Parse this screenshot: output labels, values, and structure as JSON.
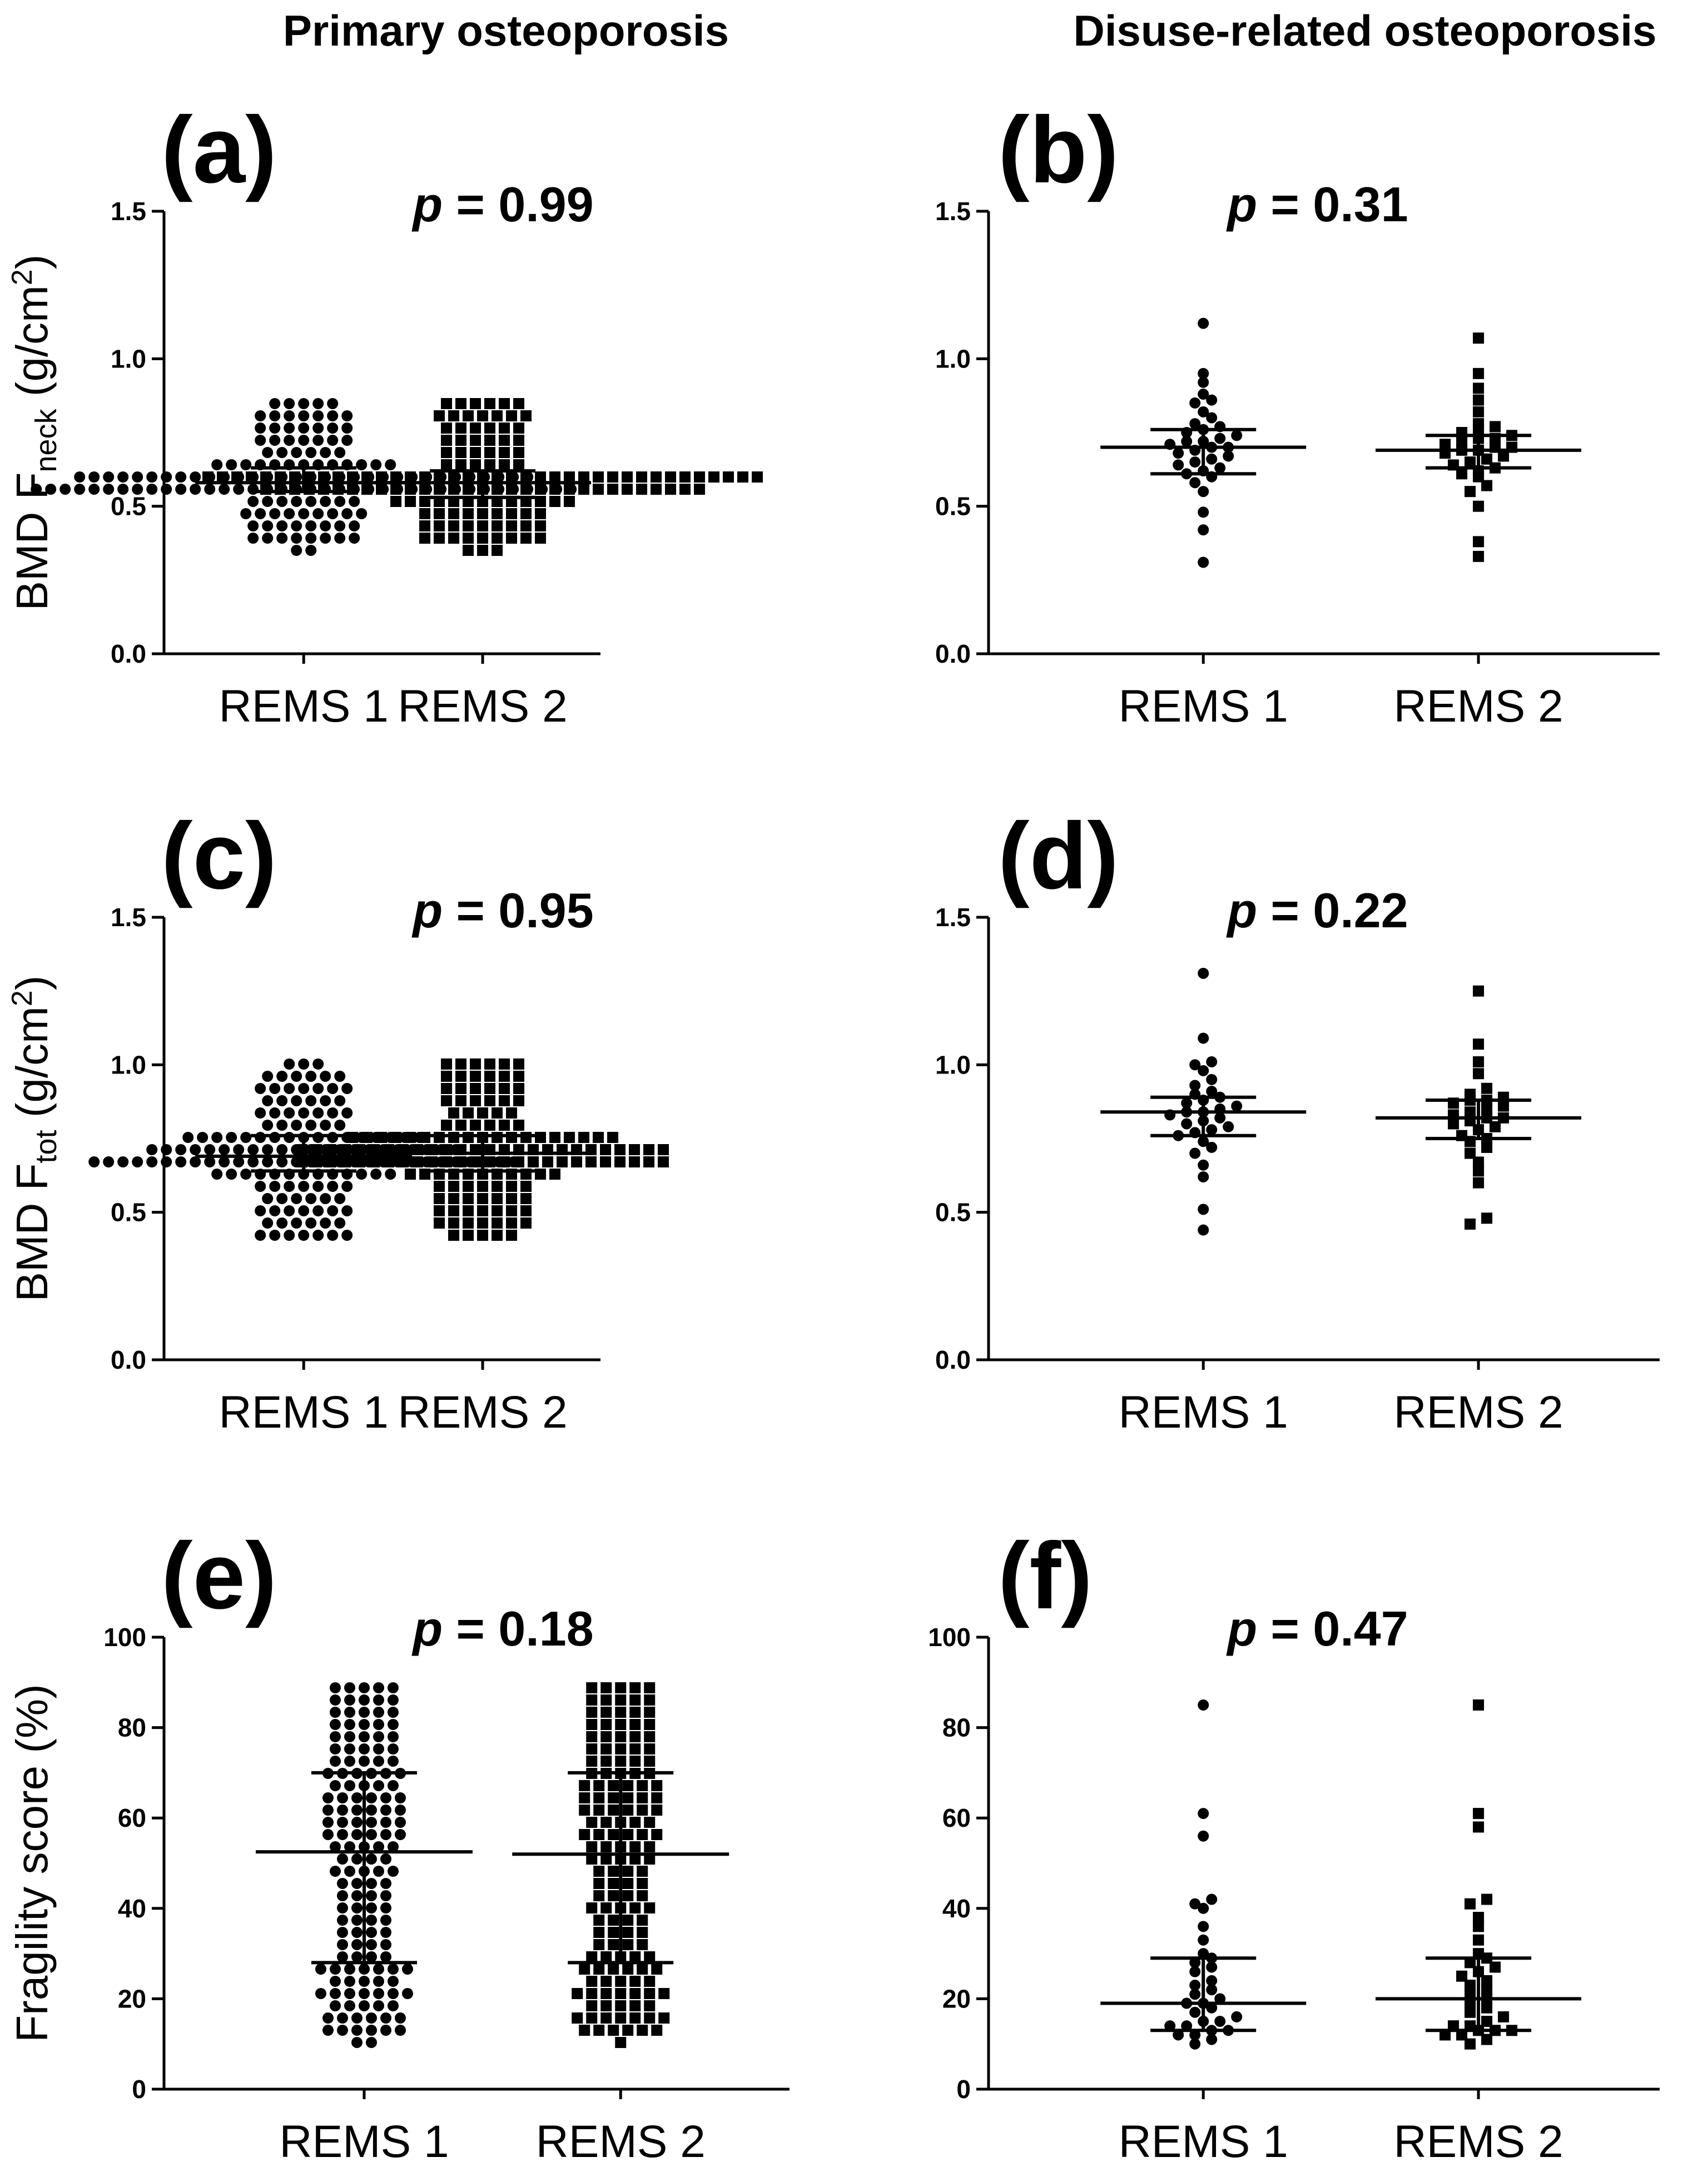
{
  "column_titles": [
    "Primary osteoporosis",
    "Disuse-related osteoporosis"
  ],
  "y_labels": {
    "neck": {
      "main": "BMD F",
      "sub": "neck",
      "unit": " (g/cm",
      "sup": "2",
      "close": ")"
    },
    "tot": {
      "main": "BMD F",
      "sub": "tot",
      "unit": " (g/cm",
      "sup": "2",
      "close": ")"
    },
    "frag": {
      "main": "Fragility score (%)"
    }
  },
  "chart_data": [
    {
      "id": "a",
      "type": "scatter",
      "panel_label": "(a)",
      "p_label": "p",
      "p_value": "= 0.99",
      "y_axis": "neck",
      "categories": [
        "REMS 1",
        "REMS 2"
      ],
      "ylim": [
        0,
        1.5
      ],
      "yticks": [
        "0.0",
        "0.5",
        "1.0",
        "1.5"
      ],
      "groups": [
        {
          "name": "REMS 1",
          "marker": "circle",
          "n": 150,
          "median": 0.58,
          "q1": 0.55,
          "q3": 0.63,
          "min": 0.36,
          "max": 0.86
        },
        {
          "name": "REMS 2",
          "marker": "square",
          "n": 150,
          "median": 0.58,
          "q1": 0.53,
          "q3": 0.62,
          "min": 0.36,
          "max": 0.87
        }
      ]
    },
    {
      "id": "b",
      "type": "scatter",
      "panel_label": "(b)",
      "p_label": "p",
      "p_value": "= 0.31",
      "y_axis": null,
      "categories": [
        "REMS 1",
        "REMS 2"
      ],
      "ylim": [
        0,
        1.5
      ],
      "yticks": [
        "0.0",
        "0.5",
        "1.0",
        "1.5"
      ],
      "groups": [
        {
          "name": "REMS 1",
          "marker": "circle",
          "median": 0.7,
          "q1": 0.61,
          "q3": 0.76,
          "values": [
            0.31,
            0.42,
            0.48,
            0.55,
            0.58,
            0.6,
            0.61,
            0.62,
            0.63,
            0.64,
            0.65,
            0.66,
            0.67,
            0.68,
            0.69,
            0.7,
            0.7,
            0.71,
            0.72,
            0.72,
            0.73,
            0.74,
            0.75,
            0.76,
            0.77,
            0.78,
            0.8,
            0.82,
            0.85,
            0.86,
            0.88,
            0.92,
            0.95,
            1.12
          ]
        },
        {
          "name": "REMS 2",
          "marker": "square",
          "median": 0.69,
          "q1": 0.63,
          "q3": 0.74,
          "values": [
            0.33,
            0.38,
            0.5,
            0.55,
            0.57,
            0.6,
            0.61,
            0.62,
            0.63,
            0.64,
            0.65,
            0.66,
            0.67,
            0.68,
            0.69,
            0.69,
            0.7,
            0.7,
            0.71,
            0.72,
            0.73,
            0.73,
            0.74,
            0.75,
            0.76,
            0.77,
            0.78,
            0.82,
            0.86,
            0.9,
            0.95,
            1.07
          ]
        }
      ]
    },
    {
      "id": "c",
      "type": "scatter",
      "panel_label": "(c)",
      "p_label": "p",
      "p_value": "= 0.95",
      "y_axis": "tot",
      "categories": [
        "REMS 1",
        "REMS 2"
      ],
      "ylim": [
        0,
        1.5
      ],
      "yticks": [
        "0.0",
        "0.5",
        "1.0",
        "1.5"
      ],
      "groups": [
        {
          "name": "REMS 1",
          "marker": "circle",
          "n": 150,
          "median": 0.69,
          "q1": 0.64,
          "q3": 0.76,
          "min": 0.4,
          "max": 1.0
        },
        {
          "name": "REMS 2",
          "marker": "square",
          "n": 150,
          "median": 0.7,
          "q1": 0.64,
          "q3": 0.76,
          "min": 0.41,
          "max": 1.02
        }
      ]
    },
    {
      "id": "d",
      "type": "scatter",
      "panel_label": "(d)",
      "p_label": "p",
      "p_value": "= 0.22",
      "y_axis": null,
      "categories": [
        "REMS 1",
        "REMS 2"
      ],
      "ylim": [
        0,
        1.5
      ],
      "yticks": [
        "0.0",
        "0.5",
        "1.0",
        "1.5"
      ],
      "groups": [
        {
          "name": "REMS 1",
          "marker": "circle",
          "median": 0.84,
          "q1": 0.76,
          "q3": 0.89,
          "values": [
            0.44,
            0.51,
            0.62,
            0.66,
            0.7,
            0.72,
            0.74,
            0.76,
            0.77,
            0.78,
            0.79,
            0.8,
            0.81,
            0.82,
            0.83,
            0.84,
            0.84,
            0.85,
            0.86,
            0.87,
            0.88,
            0.89,
            0.9,
            0.91,
            0.93,
            0.95,
            0.98,
            1.0,
            1.01,
            1.09,
            1.31
          ]
        },
        {
          "name": "REMS 2",
          "marker": "square",
          "median": 0.82,
          "q1": 0.75,
          "q3": 0.88,
          "values": [
            0.46,
            0.48,
            0.6,
            0.64,
            0.67,
            0.7,
            0.72,
            0.74,
            0.75,
            0.76,
            0.78,
            0.79,
            0.8,
            0.81,
            0.82,
            0.82,
            0.83,
            0.84,
            0.85,
            0.86,
            0.87,
            0.88,
            0.88,
            0.89,
            0.9,
            0.92,
            0.97,
            1.01,
            1.07,
            1.25
          ]
        }
      ]
    },
    {
      "id": "e",
      "type": "scatter",
      "panel_label": "(e)",
      "p_label": "p",
      "p_value": "= 0.18",
      "y_axis": "frag",
      "categories": [
        "REMS 1",
        "REMS 2"
      ],
      "ylim": [
        0,
        100
      ],
      "yticks": [
        "0",
        "20",
        "40",
        "60",
        "80",
        "100"
      ],
      "groups": [
        {
          "name": "REMS 1",
          "marker": "circle",
          "n": 150,
          "median": 52.5,
          "q1": 28,
          "q3": 70,
          "min": 11,
          "max": 90
        },
        {
          "name": "REMS 2",
          "marker": "square",
          "n": 150,
          "median": 52,
          "q1": 28,
          "q3": 70,
          "min": 11,
          "max": 90
        }
      ]
    },
    {
      "id": "f",
      "type": "scatter",
      "panel_label": "(f)",
      "p_label": "p",
      "p_value": "= 0.47",
      "y_axis": null,
      "categories": [
        "REMS 1",
        "REMS 2"
      ],
      "ylim": [
        0,
        100
      ],
      "yticks": [
        "0",
        "20",
        "40",
        "60",
        "80",
        "100"
      ],
      "groups": [
        {
          "name": "REMS 1",
          "marker": "circle",
          "median": 19,
          "q1": 13,
          "q3": 29,
          "values": [
            10,
            11,
            12,
            12,
            13,
            13,
            14,
            14,
            15,
            15,
            16,
            17,
            18,
            19,
            19,
            20,
            21,
            22,
            23,
            24,
            26,
            27,
            28,
            29,
            30,
            33,
            36,
            40,
            41,
            42,
            56,
            61,
            85
          ]
        },
        {
          "name": "REMS 2",
          "marker": "square",
          "median": 20,
          "q1": 13,
          "q3": 29,
          "values": [
            10,
            11,
            12,
            12,
            13,
            13,
            13,
            14,
            14,
            15,
            16,
            17,
            18,
            19,
            20,
            21,
            22,
            23,
            24,
            25,
            26,
            27,
            28,
            29,
            30,
            33,
            36,
            38,
            41,
            42,
            58,
            61,
            85
          ]
        }
      ]
    }
  ]
}
